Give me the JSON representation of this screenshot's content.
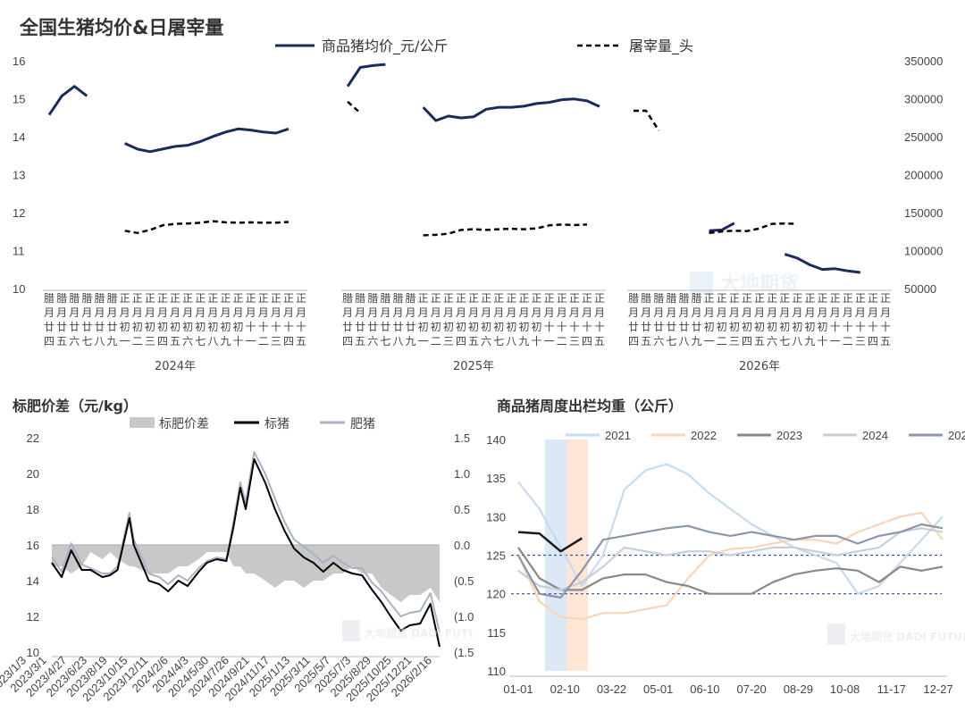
{
  "chart_data": [
    {
      "type": "line",
      "title": "全国生猪均价&日屠宰量",
      "legend": [
        "商品猪均价_元/公斤",
        "屠宰量_头"
      ],
      "y_left_ticks": [
        "10",
        "11",
        "12",
        "13",
        "14",
        "15",
        "16"
      ],
      "y_right_ticks": [
        "50000",
        "100000",
        "150000",
        "200000",
        "250000",
        "300000",
        "350000"
      ],
      "ylim_left": [
        10,
        16
      ],
      "ylim_right": [
        50000,
        350000
      ],
      "x_tick_labels": [
        "腊月廿四",
        "腊月廿五",
        "腊月廿六",
        "腊月廿七",
        "腊月廿八",
        "腊月廿九",
        "正月初一",
        "正月初二",
        "正月初三",
        "正月初四",
        "正月初五",
        "正月初六",
        "正月初七",
        "正月初八",
        "正月初九",
        "正月初十",
        "正月十一",
        "正月十二",
        "正月十三",
        "正月十四",
        "正月十五"
      ],
      "groups": [
        "2024年",
        "2025年",
        "2026年"
      ],
      "series": [
        {
          "name": "商品猪均价_元/公斤",
          "axis": "left",
          "values": [
            [
              14.55,
              15.05,
              15.3,
              15.05,
              null,
              null,
              13.8,
              13.65,
              13.58,
              13.65,
              13.72,
              13.75,
              13.85,
              13.98,
              14.1,
              14.18,
              14.15,
              14.1,
              14.07,
              14.18,
              null
            ],
            [
              15.3,
              15.8,
              15.85,
              15.88,
              null,
              null,
              14.75,
              14.4,
              14.52,
              14.47,
              14.5,
              14.7,
              14.75,
              14.75,
              14.78,
              14.85,
              14.88,
              14.95,
              14.97,
              14.92,
              14.77
            ],
            [
              null,
              null,
              null,
              null,
              null,
              null,
              11.5,
              11.52,
              11.7,
              null,
              null,
              null,
              10.88,
              10.78,
              10.6,
              10.48,
              10.5,
              10.44,
              10.4,
              null,
              null
            ]
          ]
        },
        {
          "name": "屠宰量_头",
          "axis": "right",
          "values": [
            [
              null,
              null,
              null,
              null,
              null,
              null,
              125000,
              122000,
              126000,
              132000,
              134000,
              134500,
              135500,
              137500,
              136000,
              135500,
              136000,
              135500,
              135500,
              136500,
              null
            ],
            [
              295000,
              280000,
              null,
              null,
              null,
              null,
              119000,
              119500,
              121000,
              126000,
              127000,
              126000,
              127000,
              127500,
              127000,
              128000,
              132000,
              133000,
              132500,
              133000,
              null
            ],
            [
              283000,
              283000,
              257000,
              null,
              null,
              null,
              122000,
              124000,
              125000,
              124500,
              128000,
              134000,
              134500,
              134000,
              null,
              null,
              null,
              null,
              null,
              null,
              null
            ]
          ]
        }
      ],
      "watermark": "大地期货"
    },
    {
      "type": "line",
      "title": "标肥价差（元/kg）",
      "legend": [
        "标肥价差",
        "标猪",
        "肥猪"
      ],
      "y_left_ticks": [
        "10",
        "12",
        "14",
        "16",
        "18",
        "20",
        "22"
      ],
      "y_right_ticks": [
        "1.5",
        "1.0",
        "0.5",
        "0.0",
        "(0.5)",
        "(1.0)",
        "(1.5)"
      ],
      "ylim_left": [
        10,
        22
      ],
      "ylim_right": [
        -1.5,
        1.5
      ],
      "x_tick_labels": [
        "2023/1/3",
        "2023/3/1",
        "2023/4/27",
        "2023/6/23",
        "2023/8/19",
        "2023/10/15",
        "2023/12/11",
        "2024/2/6",
        "2024/4/3",
        "2024/5/30",
        "2024/7/26",
        "2024/9/21",
        "2024/11/17",
        "2025/1/13",
        "2025/3/11",
        "2025/5/7",
        "2025/7/3",
        "2025/8/29",
        "2025/10/25",
        "2025/12/21",
        "2026/2/16"
      ],
      "x_dates": [
        "2023-01-03",
        "2023-02-01",
        "2023-03-01",
        "2023-04-01",
        "2023-04-27",
        "2023-06-01",
        "2023-06-23",
        "2023-07-15",
        "2023-08-19",
        "2023-09-01",
        "2023-10-15",
        "2023-11-15",
        "2023-12-11",
        "2024-01-10",
        "2024-02-06",
        "2024-03-10",
        "2024-04-03",
        "2024-05-01",
        "2024-05-30",
        "2024-06-20",
        "2024-07-10",
        "2024-07-26",
        "2024-08-20",
        "2024-09-21",
        "2024-10-20",
        "2024-11-17",
        "2024-12-15",
        "2025-01-13",
        "2025-02-10",
        "2025-03-11",
        "2025-04-10",
        "2025-05-07",
        "2025-06-05",
        "2025-07-03",
        "2025-08-01",
        "2025-08-29",
        "2025-09-25",
        "2025-10-25",
        "2025-11-20",
        "2025-12-21",
        "2026-01-20",
        "2026-02-16"
      ],
      "series": [
        {
          "name": "标猪",
          "values": [
            15.0,
            14.2,
            15.7,
            14.6,
            14.6,
            14.2,
            14.3,
            14.6,
            17.5,
            16.0,
            14.0,
            13.8,
            13.4,
            14.0,
            13.7,
            14.5,
            15.0,
            15.2,
            15.1,
            17.0,
            19.2,
            18.0,
            20.8,
            19.5,
            18.0,
            16.8,
            15.8,
            15.3,
            15.0,
            14.5,
            15.0,
            14.6,
            14.4,
            14.3,
            13.5,
            12.8,
            12.0,
            11.2,
            11.5,
            11.6,
            12.7,
            10.3
          ]
        },
        {
          "name": "肥猪",
          "values": [
            15.3,
            14.5,
            16.1,
            14.9,
            14.7,
            14.4,
            14.4,
            14.8,
            17.8,
            16.3,
            14.4,
            14.2,
            13.8,
            14.3,
            14.0,
            14.7,
            15.1,
            15.3,
            15.2,
            17.3,
            19.5,
            18.4,
            21.2,
            20.0,
            18.6,
            17.3,
            16.3,
            15.9,
            15.5,
            15.0,
            15.4,
            15.0,
            14.7,
            14.7,
            13.9,
            13.4,
            12.7,
            12.0,
            12.2,
            12.3,
            13.3,
            11.1
          ]
        },
        {
          "name": "标肥价差",
          "values": [
            -0.3,
            -0.3,
            -0.4,
            -0.3,
            -0.1,
            -0.2,
            -0.1,
            -0.2,
            -0.3,
            -0.3,
            -0.4,
            -0.4,
            -0.4,
            -0.3,
            -0.3,
            -0.2,
            -0.1,
            -0.1,
            -0.1,
            -0.3,
            -0.3,
            -0.4,
            -0.4,
            -0.5,
            -0.6,
            -0.5,
            -0.5,
            -0.6,
            -0.5,
            -0.5,
            -0.4,
            -0.4,
            -0.3,
            -0.4,
            -0.4,
            -0.6,
            -0.7,
            -0.8,
            -0.7,
            -0.7,
            -0.6,
            -0.8
          ]
        }
      ],
      "watermark": "大地期货 DADI FUTURES"
    },
    {
      "type": "line",
      "title": "商品猪周度出栏均重（公斤）",
      "legend": [
        "2021",
        "2022",
        "2023",
        "2024",
        "2025",
        "2026"
      ],
      "y_ticks": [
        "110",
        "115",
        "120",
        "125",
        "130",
        "135",
        "140"
      ],
      "ylim": [
        110,
        140
      ],
      "x_tick_labels": [
        "01-01",
        "02-10",
        "03-22",
        "05-01",
        "06-10",
        "07-20",
        "08-29",
        "10-08",
        "11-17",
        "12-27"
      ],
      "reference_lines": [
        125,
        120
      ],
      "highlight_bands": [
        "blue",
        "orange"
      ],
      "series": [
        {
          "name": "2021",
          "color": "#c8daf0",
          "values": [
            134.5,
            131,
            126,
            121,
            125,
            133.5,
            136,
            136.8,
            135.5,
            133,
            131,
            129,
            127.5,
            126,
            125,
            124,
            120,
            121,
            124,
            127,
            130
          ]
        },
        {
          "name": "2022",
          "color": "#f8d4b8",
          "values": [
            125,
            119,
            117,
            116.7,
            117.5,
            117.5,
            118,
            118.5,
            122,
            125,
            125.8,
            126,
            126.5,
            127,
            127,
            126.5,
            128,
            129,
            130,
            130.5,
            127
          ]
        },
        {
          "name": "2023",
          "color": "#888888",
          "values": [
            126,
            122,
            120.5,
            120.5,
            122,
            122.5,
            122.5,
            121.5,
            121,
            120,
            120,
            120,
            121.5,
            122.5,
            123,
            123.3,
            123,
            121.5,
            123.5,
            123,
            123.5
          ]
        },
        {
          "name": "2024",
          "color": "#c8ced8",
          "values": [
            123,
            121,
            120.5,
            121.5,
            123.5,
            126,
            125.5,
            125,
            125.5,
            125.5,
            125,
            125.5,
            126,
            126,
            125.5,
            125,
            125.5,
            126,
            128,
            128.5,
            128
          ]
        },
        {
          "name": "2025",
          "color": "#8a96a8",
          "values": [
            125,
            120,
            119.5,
            123,
            127,
            127.5,
            128,
            128.5,
            128.8,
            128,
            127.5,
            128,
            127.5,
            127,
            127.5,
            127.5,
            126.5,
            127.5,
            128,
            129,
            128.5
          ]
        },
        {
          "name": "2026",
          "color": "#1a1a1a",
          "values": [
            128,
            127.8,
            125.5,
            127.2
          ]
        }
      ],
      "watermark": "大地期货 DADI FUTURES"
    }
  ]
}
